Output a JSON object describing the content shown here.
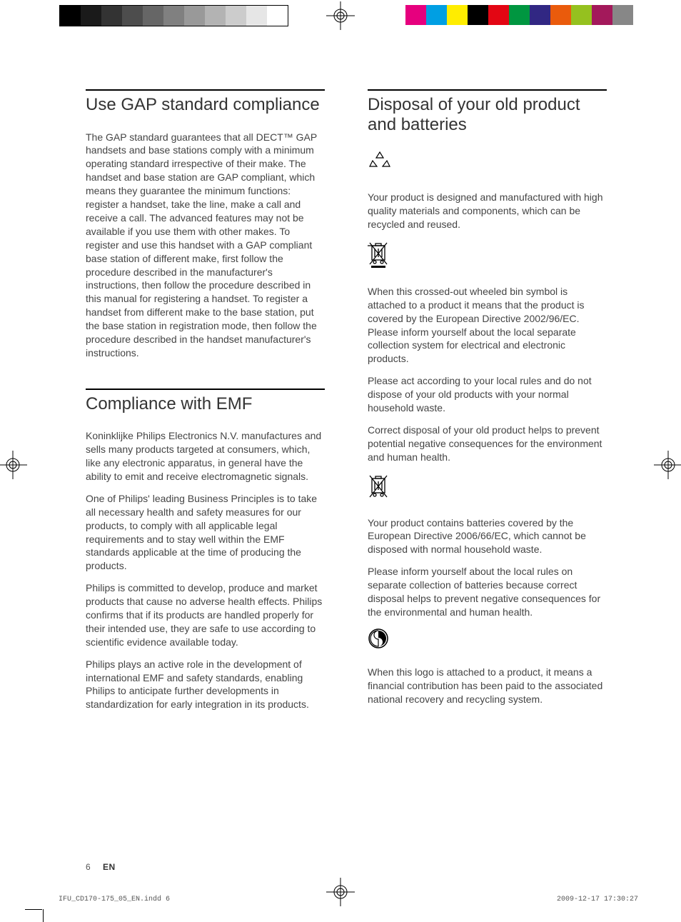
{
  "grayscale_colors": [
    "#000000",
    "#1a1a1a",
    "#333333",
    "#4d4d4d",
    "#666666",
    "#808080",
    "#999999",
    "#b3b3b3",
    "#cccccc",
    "#e6e6e6",
    "#ffffff"
  ],
  "process_colors": [
    "#e6007e",
    "#009fe3",
    "#ffed00",
    "#000000",
    "#e30613",
    "#009640",
    "#312783",
    "#ea5b0c",
    "#95c11f",
    "#a3195b",
    "#878787"
  ],
  "left": {
    "s1": {
      "title": "Use GAP standard compliance",
      "p1": "The GAP standard guarantees that all DECT™ GAP handsets and base stations comply with a minimum operating standard irrespective of their make. The handset and base station are GAP compliant, which means they guarantee the minimum functions: register a handset, take the line, make a call and receive a call. The advanced features may not be available if you use them with other makes. To register and use this handset with a GAP compliant base station of different make, first follow the procedure described in the manufacturer's instructions, then follow the procedure described in this manual for registering a handset. To register a handset from different make to the base station, put the base station in registration mode, then follow the procedure described in the handset manufacturer's instructions."
    },
    "s2": {
      "title": "Compliance with EMF",
      "p1": "Koninklijke Philips Electronics N.V. manufactures and sells many products targeted at consumers, which, like any electronic apparatus, in general have the ability to emit and receive electromagnetic signals.",
      "p2": "One of Philips' leading Business Principles is to take all necessary health and safety measures for our products, to comply with all applicable legal requirements and to stay well within the EMF standards applicable at the time of producing the products.",
      "p3": "Philips is committed to develop, produce and market products that cause no adverse health effects. Philips confirms that if its products are handled properly for their intended use, they are safe to use according to scientific evidence available today.",
      "p4": "Philips plays an active role in the development of international EMF and safety standards, enabling Philips to anticipate further developments in standardization for early integration in its products."
    }
  },
  "right": {
    "s1": {
      "title": "Disposal of your old product and batteries",
      "p1": "Your product is designed and manufactured with high quality materials and components, which can be recycled and reused.",
      "p2": "When this crossed-out wheeled bin symbol is attached to a product it means that the product is covered by the European Directive 2002/96/EC. Please inform yourself about the local separate collection system for electrical and electronic products.",
      "p3": "Please act according to your local rules and do not dispose of your old products with your normal household waste.",
      "p4": "Correct disposal of your old product helps to prevent potential negative consequences for the environment and human health.",
      "p5": "Your product contains batteries covered by the European Directive 2006/66/EC, which cannot be disposed with normal household waste.",
      "p6": "Please inform yourself about the local rules on separate collection of batteries because correct disposal helps to prevent negative consequences for the environmental and human health.",
      "p7": "When this logo is attached to a product, it means a financial contribution has been paid to the associated national recovery and recycling system."
    }
  },
  "footer": {
    "page": "6",
    "lang": "EN"
  },
  "slug": {
    "file": "IFU_CD170-175_05_EN.indd   6",
    "datetime": "2009-12-17   17:30:27"
  }
}
